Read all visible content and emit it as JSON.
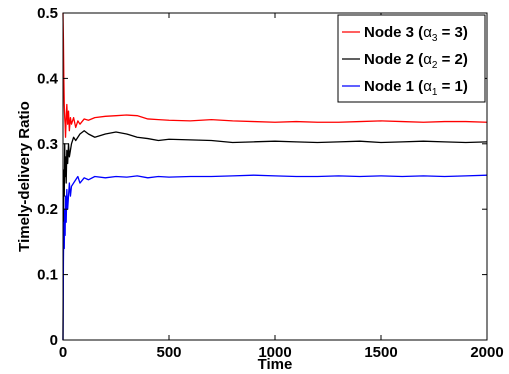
{
  "chart_data": {
    "type": "line",
    "title": "",
    "xlabel": "Time",
    "ylabel": "Timely-delivery Ratio",
    "xlim": [
      0,
      2000
    ],
    "ylim": [
      0,
      0.5
    ],
    "xticks": [
      0,
      500,
      1000,
      1500,
      2000
    ],
    "xtick_labels": [
      "0",
      "500",
      "1000",
      "1500",
      "2000"
    ],
    "yticks": [
      0,
      0.1,
      0.2,
      0.3,
      0.4,
      0.5
    ],
    "ytick_labels": [
      "0",
      "0.1",
      "0.2",
      "0.3",
      "0.4",
      "0.5"
    ],
    "grid": false,
    "legend_position": "top-right",
    "series": [
      {
        "name": "Node 3 (α3 = 3)",
        "legend": {
          "prefix": "Node 3 (",
          "greek": "α",
          "sub": "3",
          "suffix": " = 3)"
        },
        "color": "#ff0000",
        "x": [
          0,
          2,
          4,
          6,
          8,
          10,
          12,
          15,
          18,
          22,
          26,
          30,
          35,
          40,
          50,
          60,
          70,
          80,
          100,
          120,
          150,
          200,
          250,
          300,
          350,
          400,
          450,
          500,
          600,
          700,
          800,
          900,
          1000,
          1100,
          1200,
          1300,
          1400,
          1500,
          1600,
          1700,
          1800,
          1900,
          2000
        ],
        "y": [
          0.5,
          0.46,
          0.4,
          0.36,
          0.34,
          0.33,
          0.31,
          0.34,
          0.36,
          0.33,
          0.35,
          0.32,
          0.34,
          0.33,
          0.34,
          0.325,
          0.335,
          0.33,
          0.338,
          0.336,
          0.34,
          0.342,
          0.343,
          0.344,
          0.343,
          0.338,
          0.337,
          0.336,
          0.335,
          0.337,
          0.335,
          0.334,
          0.333,
          0.334,
          0.333,
          0.333,
          0.334,
          0.335,
          0.334,
          0.333,
          0.334,
          0.334,
          0.333
        ]
      },
      {
        "name": "Node 2 (α2 = 2)",
        "legend": {
          "prefix": "Node 2 (",
          "greek": "α",
          "sub": "2",
          "suffix": " = 2)"
        },
        "color": "#000000",
        "x": [
          0,
          2,
          4,
          6,
          8,
          10,
          12,
          15,
          18,
          22,
          26,
          30,
          35,
          40,
          50,
          60,
          70,
          80,
          100,
          120,
          150,
          200,
          250,
          300,
          350,
          400,
          450,
          500,
          600,
          700,
          800,
          900,
          1000,
          1100,
          1200,
          1300,
          1400,
          1500,
          1600,
          1700,
          1800,
          1900,
          2000
        ],
        "y": [
          0.0,
          0.18,
          0.26,
          0.22,
          0.3,
          0.25,
          0.28,
          0.24,
          0.29,
          0.27,
          0.3,
          0.28,
          0.29,
          0.3,
          0.31,
          0.305,
          0.31,
          0.315,
          0.32,
          0.315,
          0.31,
          0.315,
          0.318,
          0.315,
          0.31,
          0.308,
          0.305,
          0.307,
          0.306,
          0.305,
          0.302,
          0.303,
          0.304,
          0.303,
          0.302,
          0.303,
          0.304,
          0.302,
          0.303,
          0.304,
          0.303,
          0.302,
          0.303
        ]
      },
      {
        "name": "Node 1 (α1 = 1)",
        "legend": {
          "prefix": "Node 1 (",
          "greek": "α",
          "sub": "1",
          "suffix": " = 1)"
        },
        "color": "#0000ff",
        "x": [
          0,
          2,
          4,
          6,
          8,
          10,
          12,
          15,
          18,
          22,
          26,
          30,
          35,
          40,
          50,
          60,
          70,
          80,
          100,
          120,
          150,
          200,
          250,
          300,
          350,
          400,
          450,
          500,
          600,
          700,
          800,
          900,
          1000,
          1100,
          1200,
          1300,
          1400,
          1500,
          1600,
          1700,
          1800,
          1900,
          2000
        ],
        "y": [
          0.0,
          0.12,
          0.18,
          0.14,
          0.2,
          0.16,
          0.22,
          0.18,
          0.23,
          0.2,
          0.22,
          0.24,
          0.22,
          0.235,
          0.24,
          0.245,
          0.25,
          0.24,
          0.248,
          0.245,
          0.25,
          0.248,
          0.25,
          0.249,
          0.251,
          0.248,
          0.25,
          0.249,
          0.25,
          0.25,
          0.251,
          0.252,
          0.251,
          0.25,
          0.25,
          0.251,
          0.25,
          0.251,
          0.25,
          0.251,
          0.25,
          0.251,
          0.252
        ]
      }
    ]
  }
}
